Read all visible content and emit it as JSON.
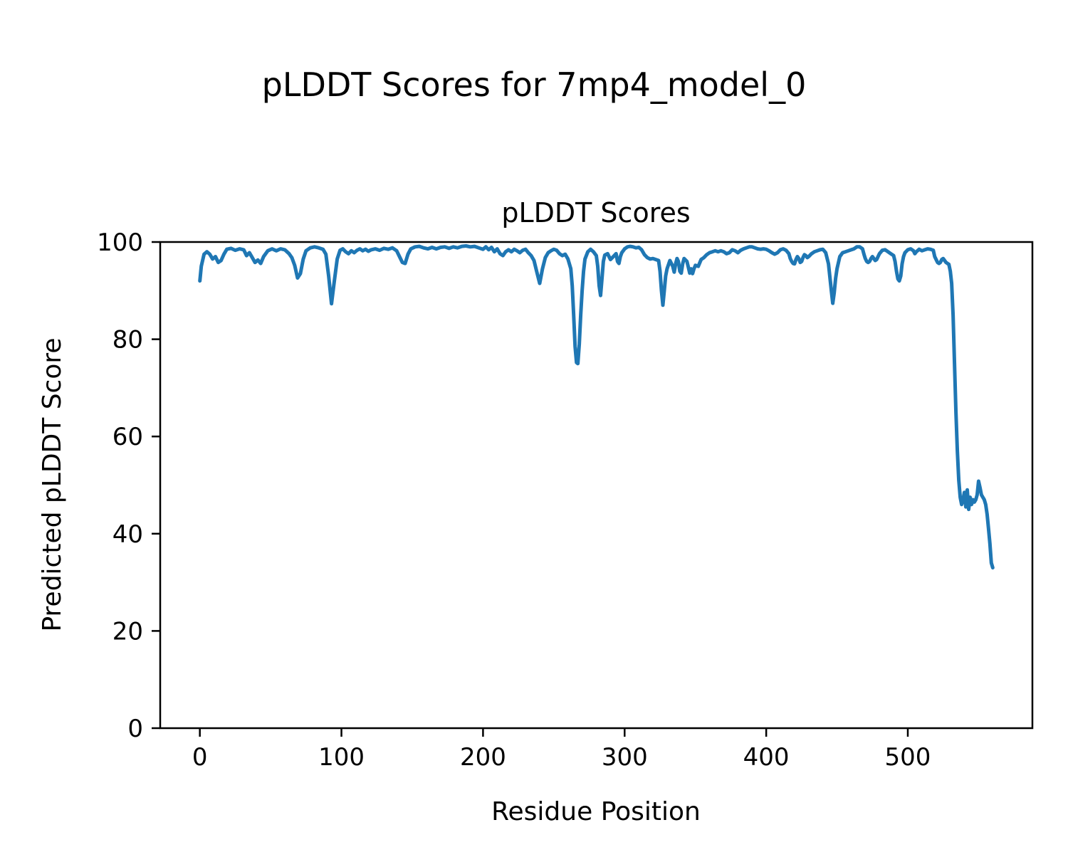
{
  "figure": {
    "suptitle": "pLDDT Scores for 7mp4_model_0",
    "background": "#ffffff"
  },
  "chart_data": {
    "type": "line",
    "title": "pLDDT Scores",
    "xlabel": "Residue Position",
    "ylabel": "Predicted pLDDT Score",
    "xlim": [
      -28,
      588
    ],
    "ylim": [
      0,
      100
    ],
    "xticks": [
      0,
      100,
      200,
      300,
      400,
      500
    ],
    "yticks": [
      0,
      20,
      40,
      60,
      80,
      100
    ],
    "grid": false,
    "legend_position": "none",
    "line_color": "#1f77b4",
    "line_width": 5,
    "series": [
      {
        "name": "pLDDT",
        "points": [
          [
            0,
            92
          ],
          [
            1,
            95
          ],
          [
            3,
            97.5
          ],
          [
            5,
            98
          ],
          [
            7,
            97.5
          ],
          [
            9,
            96.5
          ],
          [
            11,
            97
          ],
          [
            13,
            95.8
          ],
          [
            15,
            96.2
          ],
          [
            17,
            97.5
          ],
          [
            19,
            98.5
          ],
          [
            22,
            98.7
          ],
          [
            25,
            98.3
          ],
          [
            28,
            98.6
          ],
          [
            31,
            98.4
          ],
          [
            33,
            97.2
          ],
          [
            35,
            97.8
          ],
          [
            37,
            96.8
          ],
          [
            39,
            95.8
          ],
          [
            41,
            96.3
          ],
          [
            43,
            95.6
          ],
          [
            45,
            97
          ],
          [
            48,
            98.2
          ],
          [
            51,
            98.6
          ],
          [
            54,
            98.2
          ],
          [
            57,
            98.6
          ],
          [
            60,
            98.4
          ],
          [
            63,
            97.6
          ],
          [
            65,
            96.8
          ],
          [
            67,
            95.2
          ],
          [
            69,
            92.6
          ],
          [
            71,
            93.5
          ],
          [
            73,
            96.5
          ],
          [
            75,
            98.2
          ],
          [
            78,
            98.8
          ],
          [
            81,
            99
          ],
          [
            84,
            98.8
          ],
          [
            87,
            98.5
          ],
          [
            89,
            97.5
          ],
          [
            91,
            93
          ],
          [
            93,
            87.3
          ],
          [
            95,
            92
          ],
          [
            97,
            96.5
          ],
          [
            99,
            98.3
          ],
          [
            101,
            98.6
          ],
          [
            103,
            98
          ],
          [
            105,
            97.6
          ],
          [
            107,
            98.2
          ],
          [
            109,
            97.8
          ],
          [
            111,
            98.3
          ],
          [
            113,
            98.6
          ],
          [
            115,
            98.2
          ],
          [
            117,
            98.5
          ],
          [
            119,
            98.1
          ],
          [
            121,
            98.4
          ],
          [
            124,
            98.6
          ],
          [
            127,
            98.3
          ],
          [
            130,
            98.7
          ],
          [
            133,
            98.5
          ],
          [
            136,
            98.8
          ],
          [
            139,
            98.2
          ],
          [
            141,
            97
          ],
          [
            143,
            95.8
          ],
          [
            145,
            95.6
          ],
          [
            147,
            97.5
          ],
          [
            149,
            98.6
          ],
          [
            152,
            99
          ],
          [
            155,
            99.1
          ],
          [
            158,
            98.8
          ],
          [
            161,
            98.6
          ],
          [
            164,
            98.9
          ],
          [
            167,
            98.6
          ],
          [
            170,
            98.9
          ],
          [
            173,
            99
          ],
          [
            176,
            98.7
          ],
          [
            179,
            99
          ],
          [
            182,
            98.8
          ],
          [
            185,
            99.1
          ],
          [
            188,
            99.2
          ],
          [
            191,
            99
          ],
          [
            194,
            99.1
          ],
          [
            197,
            98.8
          ],
          [
            200,
            98.5
          ],
          [
            202,
            99
          ],
          [
            204,
            98.4
          ],
          [
            206,
            98.9
          ],
          [
            208,
            98
          ],
          [
            210,
            98.6
          ],
          [
            212,
            97.6
          ],
          [
            214,
            97.2
          ],
          [
            216,
            98
          ],
          [
            218,
            98.4
          ],
          [
            220,
            98
          ],
          [
            222,
            98.5
          ],
          [
            224,
            98.2
          ],
          [
            226,
            97.8
          ],
          [
            228,
            98.3
          ],
          [
            230,
            98.5
          ],
          [
            232,
            97.8
          ],
          [
            234,
            97.2
          ],
          [
            236,
            96.2
          ],
          [
            238,
            93.8
          ],
          [
            240,
            91.5
          ],
          [
            242,
            94.5
          ],
          [
            244,
            96.8
          ],
          [
            246,
            97.8
          ],
          [
            248,
            98.2
          ],
          [
            250,
            98.5
          ],
          [
            252,
            98.3
          ],
          [
            254,
            97.6
          ],
          [
            256,
            97.2
          ],
          [
            258,
            97.5
          ],
          [
            260,
            96.5
          ],
          [
            262,
            94.5
          ],
          [
            263,
            91
          ],
          [
            264,
            85
          ],
          [
            265,
            78.5
          ],
          [
            266,
            75.2
          ],
          [
            267,
            75
          ],
          [
            268,
            79
          ],
          [
            269,
            85
          ],
          [
            270,
            90
          ],
          [
            271,
            94
          ],
          [
            272,
            96.5
          ],
          [
            274,
            98
          ],
          [
            276,
            98.5
          ],
          [
            278,
            98
          ],
          [
            280,
            97.2
          ],
          [
            281,
            95
          ],
          [
            282,
            91
          ],
          [
            283,
            89
          ],
          [
            284,
            92.5
          ],
          [
            285,
            96
          ],
          [
            286,
            97.3
          ],
          [
            288,
            97.6
          ],
          [
            290,
            96.4
          ],
          [
            292,
            97
          ],
          [
            294,
            97.6
          ],
          [
            295,
            96
          ],
          [
            296,
            95.6
          ],
          [
            297,
            97
          ],
          [
            298,
            97.8
          ],
          [
            300,
            98.6
          ],
          [
            302,
            99
          ],
          [
            304,
            99.1
          ],
          [
            306,
            99
          ],
          [
            308,
            98.8
          ],
          [
            310,
            98.9
          ],
          [
            312,
            98.4
          ],
          [
            314,
            97.4
          ],
          [
            316,
            96.8
          ],
          [
            318,
            96.5
          ],
          [
            320,
            96.6
          ],
          [
            322,
            96.4
          ],
          [
            324,
            96.2
          ],
          [
            325,
            94
          ],
          [
            326,
            90
          ],
          [
            327,
            87
          ],
          [
            328,
            90
          ],
          [
            329,
            93
          ],
          [
            330,
            94.5
          ],
          [
            332,
            96.2
          ],
          [
            334,
            95
          ],
          [
            335,
            93.8
          ],
          [
            336,
            95.5
          ],
          [
            337,
            96.6
          ],
          [
            338,
            96
          ],
          [
            339,
            94
          ],
          [
            340,
            93.6
          ],
          [
            341,
            95.5
          ],
          [
            342,
            96.6
          ],
          [
            344,
            96
          ],
          [
            345,
            94.8
          ],
          [
            346,
            93.6
          ],
          [
            347,
            94.5
          ],
          [
            348,
            93.5
          ],
          [
            349,
            94.5
          ],
          [
            350,
            95.2
          ],
          [
            352,
            95
          ],
          [
            354,
            96.4
          ],
          [
            356,
            96.8
          ],
          [
            358,
            97.4
          ],
          [
            360,
            97.8
          ],
          [
            362,
            98
          ],
          [
            364,
            98.2
          ],
          [
            366,
            98
          ],
          [
            368,
            98.2
          ],
          [
            370,
            98
          ],
          [
            372,
            97.6
          ],
          [
            374,
            97.8
          ],
          [
            376,
            98.4
          ],
          [
            378,
            98.2
          ],
          [
            380,
            97.8
          ],
          [
            382,
            98.3
          ],
          [
            384,
            98.6
          ],
          [
            386,
            98.8
          ],
          [
            388,
            99
          ],
          [
            390,
            99
          ],
          [
            392,
            98.8
          ],
          [
            394,
            98.6
          ],
          [
            396,
            98.5
          ],
          [
            398,
            98.6
          ],
          [
            400,
            98.5
          ],
          [
            402,
            98.2
          ],
          [
            404,
            97.8
          ],
          [
            406,
            97.5
          ],
          [
            408,
            97.8
          ],
          [
            410,
            98.4
          ],
          [
            412,
            98.6
          ],
          [
            414,
            98.3
          ],
          [
            416,
            97.6
          ],
          [
            417,
            96.6
          ],
          [
            418,
            96
          ],
          [
            419,
            95.6
          ],
          [
            420,
            95.5
          ],
          [
            421,
            96.4
          ],
          [
            422,
            97
          ],
          [
            423,
            96.6
          ],
          [
            424,
            95.8
          ],
          [
            425,
            96
          ],
          [
            426,
            96.8
          ],
          [
            427,
            97.4
          ],
          [
            428,
            97.2
          ],
          [
            429,
            96.8
          ],
          [
            430,
            97
          ],
          [
            432,
            97.6
          ],
          [
            434,
            98
          ],
          [
            436,
            98.2
          ],
          [
            438,
            98.4
          ],
          [
            440,
            98.5
          ],
          [
            442,
            97.8
          ],
          [
            444,
            95.5
          ],
          [
            446,
            90
          ],
          [
            447,
            87.4
          ],
          [
            448,
            89.5
          ],
          [
            449,
            92.5
          ],
          [
            450,
            94.5
          ],
          [
            452,
            97
          ],
          [
            454,
            97.8
          ],
          [
            456,
            98
          ],
          [
            458,
            98.2
          ],
          [
            460,
            98.4
          ],
          [
            462,
            98.6
          ],
          [
            464,
            99
          ],
          [
            466,
            99
          ],
          [
            468,
            98.6
          ],
          [
            469,
            97.5
          ],
          [
            470,
            96.6
          ],
          [
            471,
            96
          ],
          [
            472,
            95.8
          ],
          [
            473,
            96
          ],
          [
            474,
            96.6
          ],
          [
            475,
            97
          ],
          [
            476,
            96.6
          ],
          [
            477,
            96.2
          ],
          [
            478,
            96.4
          ],
          [
            479,
            97
          ],
          [
            480,
            97.6
          ],
          [
            482,
            98.3
          ],
          [
            484,
            98.4
          ],
          [
            486,
            98
          ],
          [
            488,
            97.6
          ],
          [
            490,
            97.2
          ],
          [
            491,
            96
          ],
          [
            492,
            94
          ],
          [
            493,
            92.4
          ],
          [
            494,
            92
          ],
          [
            495,
            93
          ],
          [
            496,
            95.5
          ],
          [
            497,
            97
          ],
          [
            498,
            97.8
          ],
          [
            500,
            98.4
          ],
          [
            502,
            98.6
          ],
          [
            504,
            98.2
          ],
          [
            505,
            97.6
          ],
          [
            506,
            98
          ],
          [
            508,
            98.5
          ],
          [
            510,
            98.2
          ],
          [
            512,
            98.4
          ],
          [
            514,
            98.6
          ],
          [
            516,
            98.5
          ],
          [
            518,
            98.3
          ],
          [
            519,
            97
          ],
          [
            520,
            96.4
          ],
          [
            521,
            95.8
          ],
          [
            522,
            95.6
          ],
          [
            523,
            95.8
          ],
          [
            524,
            96.4
          ],
          [
            525,
            96.6
          ],
          [
            526,
            96.2
          ],
          [
            527,
            95.8
          ],
          [
            528,
            95.6
          ],
          [
            529,
            95.4
          ],
          [
            530,
            94
          ],
          [
            531,
            91.5
          ],
          [
            532,
            85
          ],
          [
            533,
            75
          ],
          [
            534,
            65
          ],
          [
            535,
            57
          ],
          [
            536,
            51
          ],
          [
            537,
            47.5
          ],
          [
            538,
            46
          ],
          [
            539,
            47
          ],
          [
            540,
            48.5
          ],
          [
            541,
            45.5
          ],
          [
            542,
            49
          ],
          [
            543,
            45
          ],
          [
            544,
            47.5
          ],
          [
            545,
            46
          ],
          [
            546,
            47
          ],
          [
            547,
            46.5
          ],
          [
            548,
            47
          ],
          [
            549,
            48
          ],
          [
            550,
            50.8
          ],
          [
            551,
            49.5
          ],
          [
            552,
            48
          ],
          [
            553,
            47.5
          ],
          [
            554,
            47
          ],
          [
            555,
            46
          ],
          [
            556,
            44
          ],
          [
            557,
            41
          ],
          [
            558,
            38
          ],
          [
            559,
            34
          ],
          [
            560,
            33
          ]
        ]
      }
    ]
  }
}
